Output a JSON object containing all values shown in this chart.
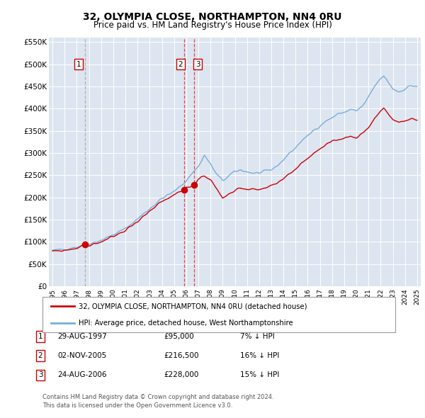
{
  "title": "32, OLYMPIA CLOSE, NORTHAMPTON, NN4 0RU",
  "subtitle": "Price paid vs. HM Land Registry's House Price Index (HPI)",
  "legend_line1": "32, OLYMPIA CLOSE, NORTHAMPTON, NN4 0RU (detached house)",
  "legend_line2": "HPI: Average price, detached house, West Northamptonshire",
  "footer": "Contains HM Land Registry data © Crown copyright and database right 2024.\nThis data is licensed under the Open Government Licence v3.0.",
  "sales": [
    {
      "label": "1",
      "date": "29-AUG-1997",
      "price": "£95,000",
      "hpi": "7% ↓ HPI",
      "year": 1997.65,
      "price_val": 95000,
      "vline_style": "dashed_gray"
    },
    {
      "label": "2",
      "date": "02-NOV-2005",
      "price": "£216,500",
      "hpi": "16% ↓ HPI",
      "year": 2005.83,
      "price_val": 216500,
      "vline_style": "dashed_red"
    },
    {
      "label": "3",
      "date": "24-AUG-2006",
      "price": "£228,000",
      "hpi": "15% ↓ HPI",
      "year": 2006.65,
      "price_val": 228000,
      "vline_style": "dashed_red"
    }
  ],
  "red_color": "#cc0000",
  "blue_color": "#7aaddc",
  "dashed_red_color": "#ee3333",
  "dashed_gray_color": "#aaaaaa",
  "bg_color": "#dde5f0",
  "grid_color": "#ffffff",
  "box_color": "#ffffff",
  "box_border": "#cc0000",
  "ylim": [
    0,
    560000
  ],
  "xlim": [
    1994.7,
    2025.3
  ],
  "yticks": [
    0,
    50000,
    100000,
    150000,
    200000,
    250000,
    300000,
    350000,
    400000,
    450000,
    500000,
    550000
  ],
  "ytick_labels": [
    "£0",
    "£50K",
    "£100K",
    "£150K",
    "£200K",
    "£250K",
    "£300K",
    "£350K",
    "£400K",
    "£450K",
    "£500K",
    "£550K"
  ],
  "xticks": [
    1995,
    1996,
    1997,
    1998,
    1999,
    2000,
    2001,
    2002,
    2003,
    2004,
    2005,
    2006,
    2007,
    2008,
    2009,
    2010,
    2011,
    2012,
    2013,
    2014,
    2015,
    2016,
    2017,
    2018,
    2019,
    2020,
    2021,
    2022,
    2023,
    2024,
    2025
  ]
}
